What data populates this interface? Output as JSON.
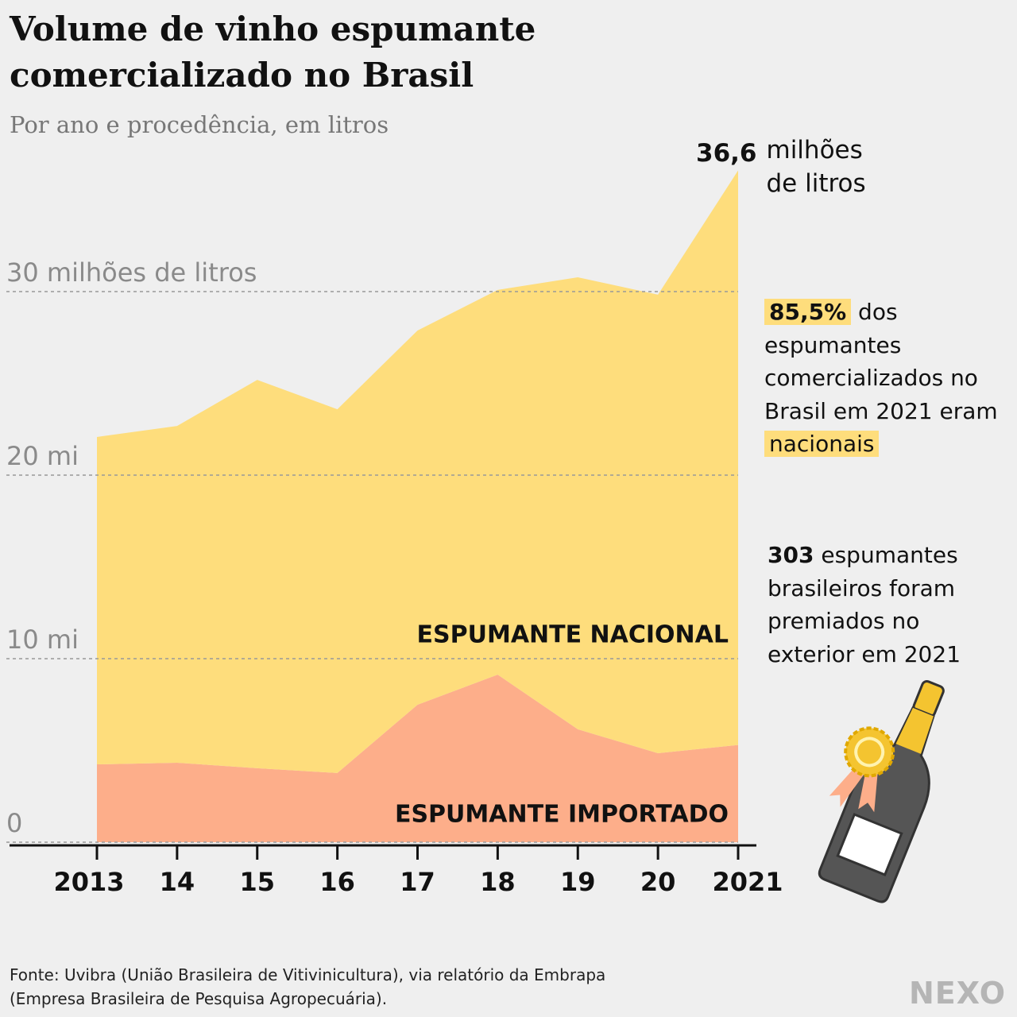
{
  "title": "Volume de vinho espumante comercializado no Brasil",
  "subtitle": "Por ano e procedência, em litros",
  "chart_data": {
    "type": "stacked_area",
    "categories": [
      "2013",
      "14",
      "15",
      "16",
      "17",
      "18",
      "19",
      "20",
      "2021"
    ],
    "series": [
      {
        "name": "ESPUMANTE IMPORTADO",
        "color": "#fdae8a",
        "values": [
          4.24,
          4.33,
          4.03,
          3.77,
          7.49,
          9.13,
          6.15,
          4.85,
          5.3
        ]
      },
      {
        "name": "ESPUMANTE NACIONAL",
        "color": "#fedd7c",
        "values": [
          17.84,
          18.35,
          21.16,
          19.82,
          20.39,
          20.96,
          24.63,
          24.98,
          31.3
        ]
      }
    ],
    "ylim": [
      0,
      40
    ],
    "yticks": [
      0,
      {
        "value": 10,
        "label": "10 mi"
      },
      {
        "value": 20,
        "label": "20 mi"
      },
      {
        "value": 30,
        "label": "30 milhões de litros"
      }
    ],
    "grid": true
  },
  "annotations": {
    "total": {
      "number": "36,6",
      "text": "milhões de litros"
    },
    "share": {
      "number": "85,5%",
      "text": "dos espumantes comercializados no Brasil em 2021 eram",
      "highlight": "nacionais"
    },
    "awards": {
      "number": "303",
      "text": "espumantes brasileiros foram premiados no exterior em 2021"
    }
  },
  "source": "Fonte: Uvibra (União Brasileira de Vitivinicultura), via relatório da Embrapa (Empresa Brasileira de Pesquisa Agropecuária).",
  "logo": "NEXO"
}
